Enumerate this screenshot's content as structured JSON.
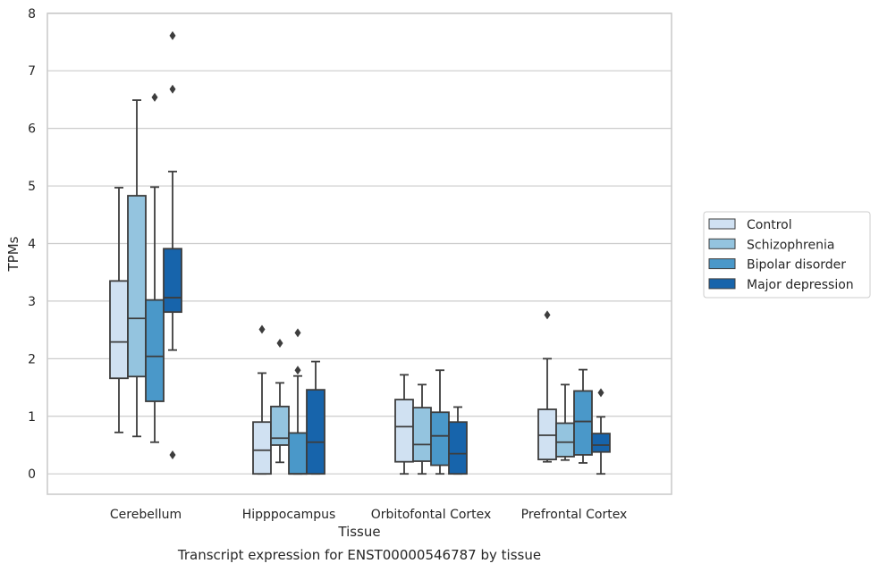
{
  "chart_data": {
    "type": "boxplot",
    "caption": "Transcript expression for ENST00000546787 by tissue",
    "xlabel": "Tissue",
    "ylabel": "TPMs",
    "ylim": [
      -0.35,
      8
    ],
    "yticks": [
      0,
      1,
      2,
      3,
      4,
      5,
      6,
      7,
      8
    ],
    "grid": "horizontal",
    "legend_position": "right",
    "categories": [
      "Cerebellum",
      "Hipppocampus",
      "Orbitofontal Cortex",
      "Prefrontal Cortex"
    ],
    "series": [
      {
        "name": "Control",
        "color": "#d0e1f2",
        "boxes": [
          {
            "whislo": 0.72,
            "q1": 1.66,
            "med": 2.29,
            "q3": 3.35,
            "whishi": 4.97,
            "fliers": []
          },
          {
            "whislo": 0.0,
            "q1": 0.0,
            "med": 0.41,
            "q3": 0.9,
            "whishi": 1.75,
            "fliers": [
              2.51
            ]
          },
          {
            "whislo": 0.0,
            "q1": 0.21,
            "med": 0.82,
            "q3": 1.29,
            "whishi": 1.72,
            "fliers": []
          },
          {
            "whislo": 0.21,
            "q1": 0.25,
            "med": 0.67,
            "q3": 1.12,
            "whishi": 2.0,
            "fliers": [
              2.76
            ]
          }
        ]
      },
      {
        "name": "Schizophrenia",
        "color": "#94c4df",
        "boxes": [
          {
            "whislo": 0.65,
            "q1": 1.69,
            "med": 2.7,
            "q3": 4.83,
            "whishi": 6.49,
            "fliers": []
          },
          {
            "whislo": 0.2,
            "q1": 0.5,
            "med": 0.62,
            "q3": 1.17,
            "whishi": 1.58,
            "fliers": [
              2.27
            ]
          },
          {
            "whislo": 0.0,
            "q1": 0.22,
            "med": 0.51,
            "q3": 1.15,
            "whishi": 1.55,
            "fliers": []
          },
          {
            "whislo": 0.24,
            "q1": 0.3,
            "med": 0.55,
            "q3": 0.88,
            "whishi": 1.55,
            "fliers": []
          }
        ]
      },
      {
        "name": "Bipolar disorder",
        "color": "#4a98c9",
        "boxes": [
          {
            "whislo": 0.55,
            "q1": 1.26,
            "med": 2.04,
            "q3": 3.02,
            "whishi": 4.98,
            "fliers": [
              6.54
            ]
          },
          {
            "whislo": 0.0,
            "q1": 0.0,
            "med": 0.0,
            "q3": 0.71,
            "whishi": 1.7,
            "fliers": [
              1.8,
              2.45
            ]
          },
          {
            "whislo": 0.0,
            "q1": 0.15,
            "med": 0.66,
            "q3": 1.07,
            "whishi": 1.8,
            "fliers": []
          },
          {
            "whislo": 0.19,
            "q1": 0.33,
            "med": 0.91,
            "q3": 1.44,
            "whishi": 1.81,
            "fliers": []
          }
        ]
      },
      {
        "name": "Major depression",
        "color": "#1764ab",
        "boxes": [
          {
            "whislo": 2.15,
            "q1": 2.81,
            "med": 3.06,
            "q3": 3.91,
            "whishi": 5.25,
            "fliers": [
              0.33,
              6.68,
              7.61
            ]
          },
          {
            "whislo": 0.0,
            "q1": 0.0,
            "med": 0.55,
            "q3": 1.46,
            "whishi": 1.95,
            "fliers": []
          },
          {
            "whislo": 0.0,
            "q1": 0.0,
            "med": 0.35,
            "q3": 0.9,
            "whishi": 1.16,
            "fliers": []
          },
          {
            "whislo": 0.0,
            "q1": 0.38,
            "med": 0.5,
            "q3": 0.7,
            "whishi": 0.99,
            "fliers": [
              1.41
            ]
          }
        ]
      }
    ]
  }
}
